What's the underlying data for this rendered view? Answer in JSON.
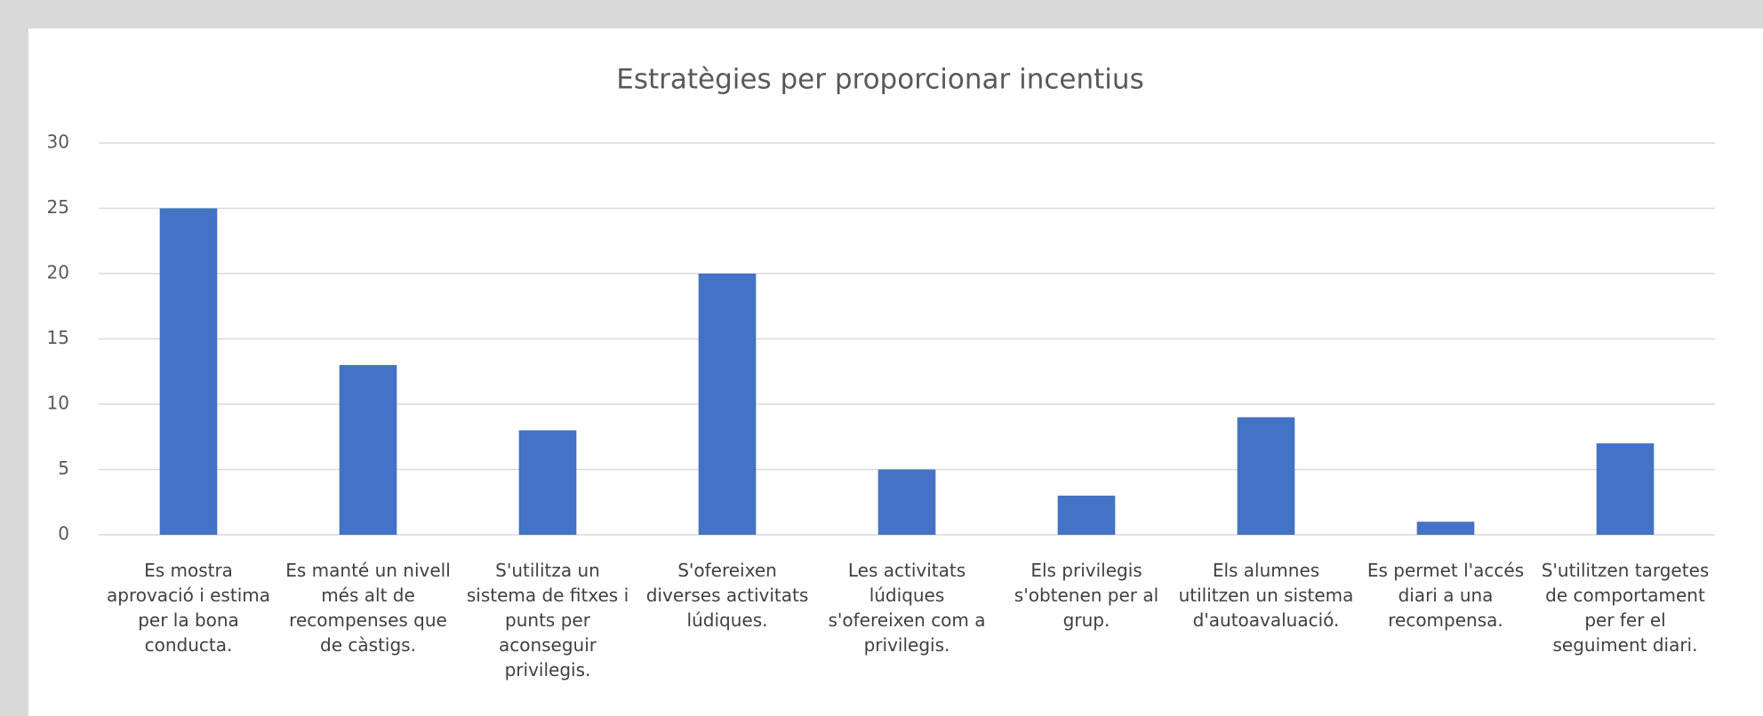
{
  "chart_data": {
    "type": "bar",
    "title": "Estratègies per proporcionar incentius",
    "categories": [
      "Es mostra aprovació i estima per la bona conducta.",
      "Es manté un nivell més alt de recompenses que de càstigs.",
      "S'utilitza un sistema de fitxes i punts per aconseguir privilegis.",
      "S'ofereixen diverses activitats lúdiques.",
      "Les activitats lúdiques s'ofereixen com a privilegis.",
      "Els privilegis s'obtenen per al grup.",
      "Els alumnes utilitzen un sistema d'autoavaluació.",
      "Es permet l'accés diari a una recompensa.",
      "S'utilitzen targetes de comportament per fer el seguiment diari."
    ],
    "values": [
      25,
      13,
      8,
      20,
      5,
      3,
      9,
      1,
      7
    ],
    "color": "#4472c4",
    "ylim": [
      0,
      30
    ],
    "yticks": [
      0,
      5,
      10,
      15,
      20,
      25,
      30
    ],
    "grid": true
  }
}
